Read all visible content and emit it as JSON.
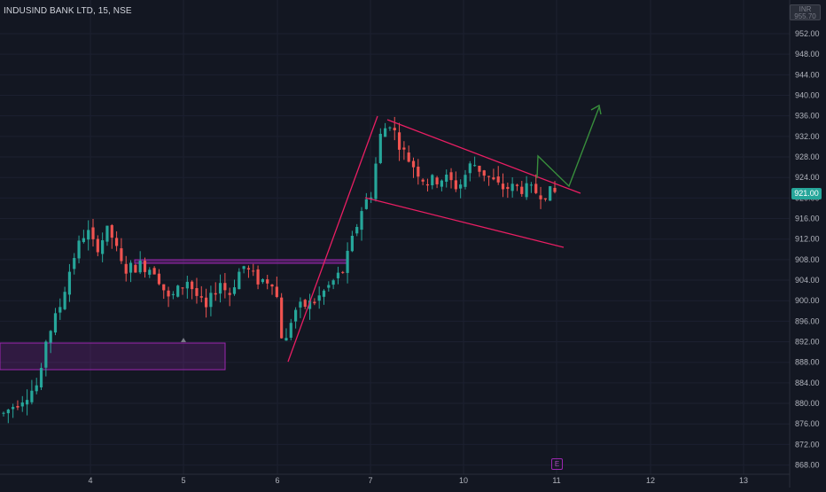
{
  "header": {
    "symbol": "INDUSIND BANK LTD, 15, NSE"
  },
  "currency_badge": {
    "code": "INR",
    "value": "955.70"
  },
  "current_price": "921.00",
  "event_marker": "E",
  "colors": {
    "background": "#131722",
    "up": "#26a69a",
    "down": "#ef5350",
    "trendline": "#e91e63",
    "zone": "#9c27b0",
    "arrow": "#388e3c"
  },
  "y_axis": {
    "ticks": [
      "952.00",
      "948.00",
      "944.00",
      "940.00",
      "936.00",
      "932.00",
      "928.00",
      "924.00",
      "920.00",
      "916.00",
      "912.00",
      "908.00",
      "904.00",
      "900.00",
      "896.00",
      "892.00",
      "888.00",
      "884.00",
      "880.00",
      "876.00",
      "872.00",
      "868.00"
    ]
  },
  "x_axis": {
    "ticks": [
      "4",
      "5",
      "6",
      "7",
      "10",
      "11",
      "12",
      "13"
    ]
  },
  "chart_data": {
    "type": "candlestick",
    "series_anchor": [
      {
        "t": 0,
        "p": 878
      },
      {
        "t": 0.4,
        "p": 884
      },
      {
        "t": 0.45,
        "p": 892
      },
      {
        "t": 0.6,
        "p": 898
      },
      {
        "t": 0.75,
        "p": 908
      },
      {
        "t": 0.9,
        "p": 914
      },
      {
        "t": 1.0,
        "p": 910
      },
      {
        "t": 1.15,
        "p": 914
      },
      {
        "t": 1.3,
        "p": 906
      },
      {
        "t": 1.5,
        "p": 907
      },
      {
        "t": 1.65,
        "p": 906
      },
      {
        "t": 1.8,
        "p": 900
      },
      {
        "t": 2.0,
        "p": 904
      },
      {
        "t": 2.2,
        "p": 898
      },
      {
        "t": 2.35,
        "p": 904
      },
      {
        "t": 2.45,
        "p": 901
      },
      {
        "t": 2.6,
        "p": 907
      },
      {
        "t": 2.75,
        "p": 904
      },
      {
        "t": 2.95,
        "p": 904
      },
      {
        "t": 3.05,
        "p": 890
      },
      {
        "t": 3.15,
        "p": 898
      },
      {
        "t": 3.4,
        "p": 900
      },
      {
        "t": 3.55,
        "p": 903
      },
      {
        "t": 3.7,
        "p": 906
      },
      {
        "t": 3.9,
        "p": 918
      },
      {
        "t": 4.0,
        "p": 921
      },
      {
        "t": 4.1,
        "p": 932
      },
      {
        "t": 4.2,
        "p": 935
      },
      {
        "t": 4.35,
        "p": 929
      },
      {
        "t": 4.6,
        "p": 923
      },
      {
        "t": 4.8,
        "p": 924
      },
      {
        "t": 4.95,
        "p": 922
      },
      {
        "t": 5.1,
        "p": 927
      },
      {
        "t": 5.4,
        "p": 922
      },
      {
        "t": 5.6,
        "p": 922
      },
      {
        "t": 5.85,
        "p": 921
      },
      {
        "t": 6.0,
        "p": 921
      }
    ]
  }
}
